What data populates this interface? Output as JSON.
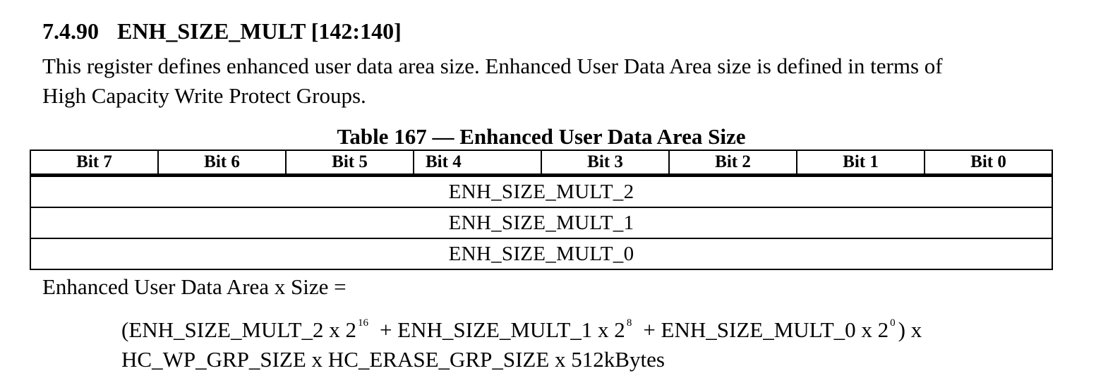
{
  "section": {
    "number": "7.4.90",
    "title": "ENH_SIZE_MULT [142:140]"
  },
  "description": {
    "line1": "This register defines enhanced user data area size. Enhanced User Data Area size is defined in terms of",
    "line2": "High Capacity Write Protect Groups."
  },
  "table": {
    "caption": "Table 167 — Enhanced User Data Area Size",
    "headers": [
      "Bit 7",
      "Bit 6",
      "Bit 5",
      "Bit 4",
      "Bit 3",
      "Bit 2",
      "Bit 1",
      "Bit 0"
    ],
    "rows": [
      "ENH_SIZE_MULT_2",
      "ENH_SIZE_MULT_1",
      "ENH_SIZE_MULT_0"
    ]
  },
  "equation": {
    "intro": "Enhanced User Data Area x Size =",
    "part1": "(ENH_SIZE_MULT_2 x 2",
    "exp1": "16",
    "part2": "+ ENH_SIZE_MULT_1 x 2",
    "exp2": "8",
    "part3": "+ ENH_SIZE_MULT_0 x 2",
    "exp3": "0",
    "part4": ") x",
    "line2": "HC_WP_GRP_SIZE x HC_ERASE_GRP_SIZE x 512kBytes"
  }
}
